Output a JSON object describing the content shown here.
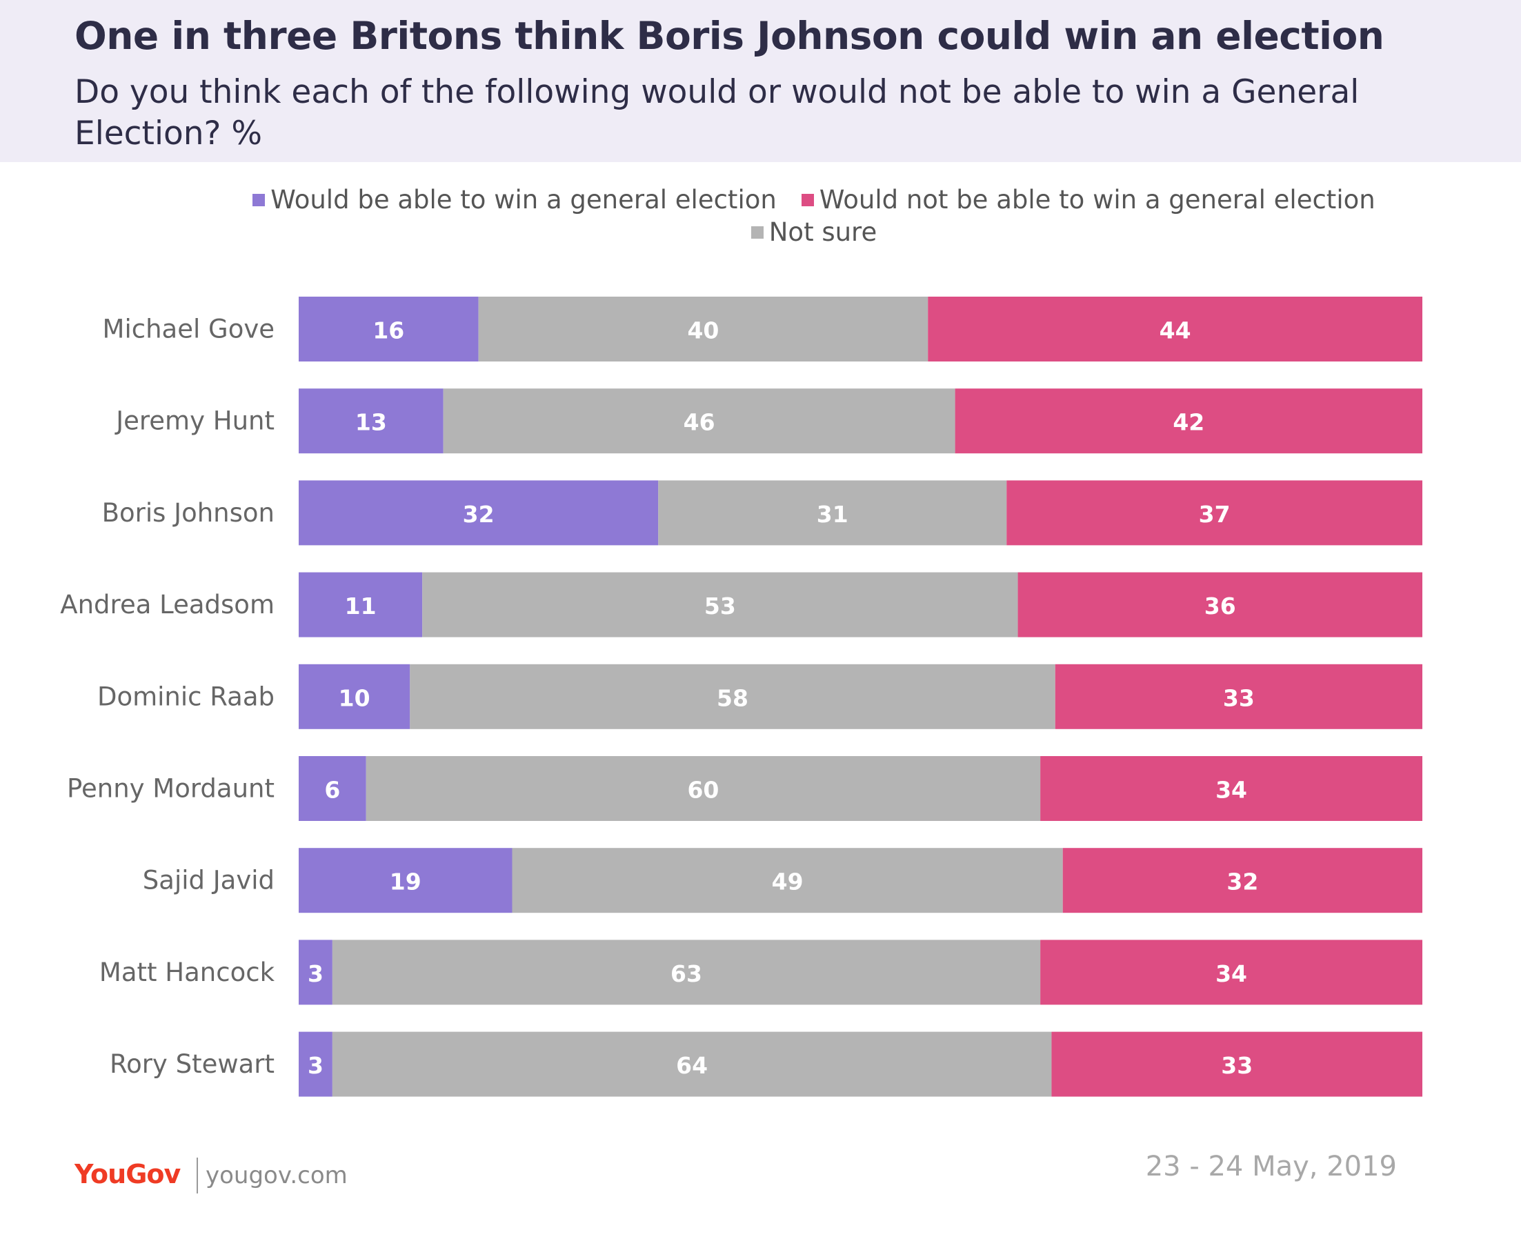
{
  "header": {
    "title": "One in three Britons think Boris Johnson could win an election",
    "subtitle": "Do you think each of the following would or would not be able to win a General Election? %"
  },
  "legend": [
    {
      "label": "Would be able to win a general election",
      "color": "#8e79d5"
    },
    {
      "label": "Would not be able to win a general election",
      "color": "#dd4d83"
    },
    {
      "label": "Not sure",
      "color": "#b4b4b4"
    }
  ],
  "chart_data": {
    "type": "bar",
    "orientation": "horizontal",
    "stacked": true,
    "categories": [
      "Michael Gove",
      "Jeremy Hunt",
      "Boris Johnson",
      "Andrea Leadsom",
      "Dominic Raab",
      "Penny Mordaunt",
      "Sajid Javid",
      "Matt Hancock",
      "Rory Stewart"
    ],
    "series": [
      {
        "name": "Would be able to win a general election",
        "color": "#8e79d5",
        "values": [
          16,
          13,
          32,
          11,
          10,
          6,
          19,
          3,
          3
        ]
      },
      {
        "name": "Not sure",
        "color": "#b4b4b4",
        "values": [
          40,
          46,
          31,
          53,
          58,
          60,
          49,
          63,
          64
        ]
      },
      {
        "name": "Would not be able to win a general election",
        "color": "#dd4d83",
        "values": [
          44,
          42,
          37,
          36,
          33,
          34,
          32,
          34,
          33
        ]
      }
    ],
    "legend_position": "top",
    "grid": false,
    "data_labels": true
  },
  "footer": {
    "brand": "YouGov",
    "website": "yougov.com",
    "date": "23 - 24 May, 2019"
  }
}
